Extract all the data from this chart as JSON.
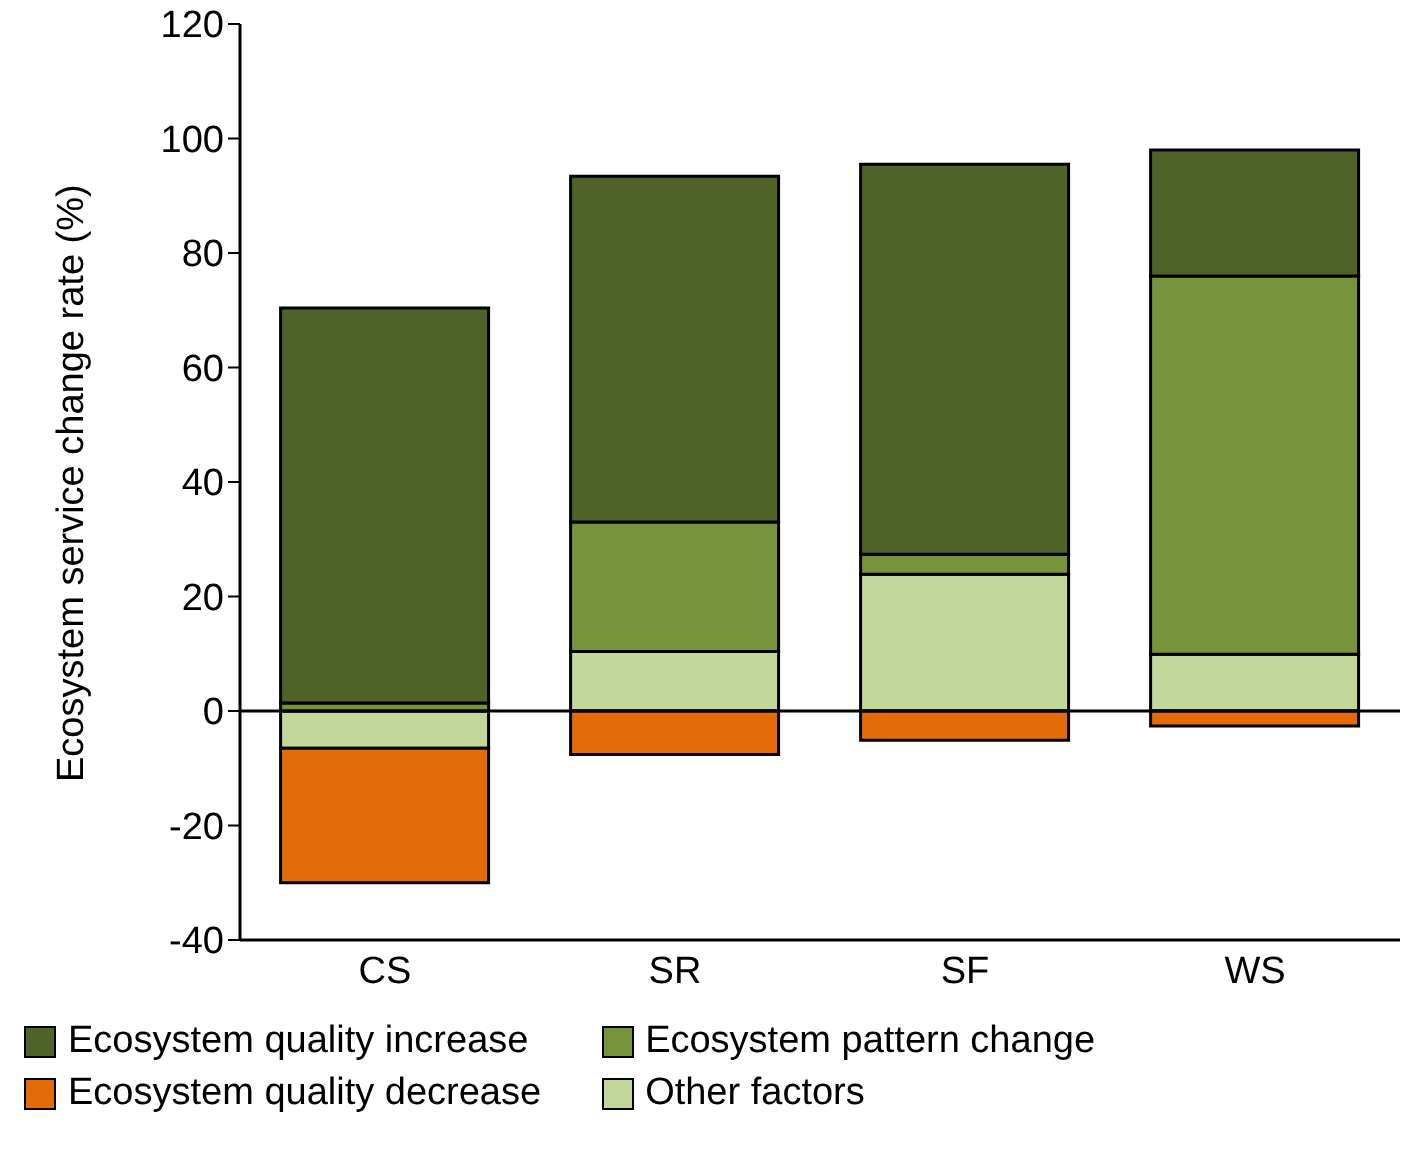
{
  "chart_data": {
    "type": "bar",
    "stacked": true,
    "ylabel": "Ecosystem service change rate (%)",
    "categories": [
      "CS",
      "SR",
      "SF",
      "WS"
    ],
    "ylim": [
      -40,
      120
    ],
    "yticks": [
      -40,
      -20,
      0,
      20,
      40,
      60,
      80,
      100,
      120
    ],
    "grid": false,
    "legend": "bottom",
    "ref_lines": [
      {
        "axis": "y",
        "value": 0,
        "color": "#000000"
      }
    ],
    "series": [
      {
        "name": "Other factors",
        "color": "#c4d79b",
        "values": [
          -6.5,
          10.4,
          23.9,
          9.9
        ]
      },
      {
        "name": "Ecosystem pattern change",
        "color": "#77933c",
        "values": [
          1.4,
          22.6,
          3.5,
          66.1
        ]
      },
      {
        "name": "Ecosystem quality decrease",
        "color": "#e36c09",
        "values": [
          -23.5,
          -7.6,
          -5.1,
          -2.6
        ]
      },
      {
        "name": "Ecosystem quality increase",
        "color": "#4f6228",
        "values": [
          69,
          60.4,
          68.1,
          22
        ]
      }
    ]
  }
}
